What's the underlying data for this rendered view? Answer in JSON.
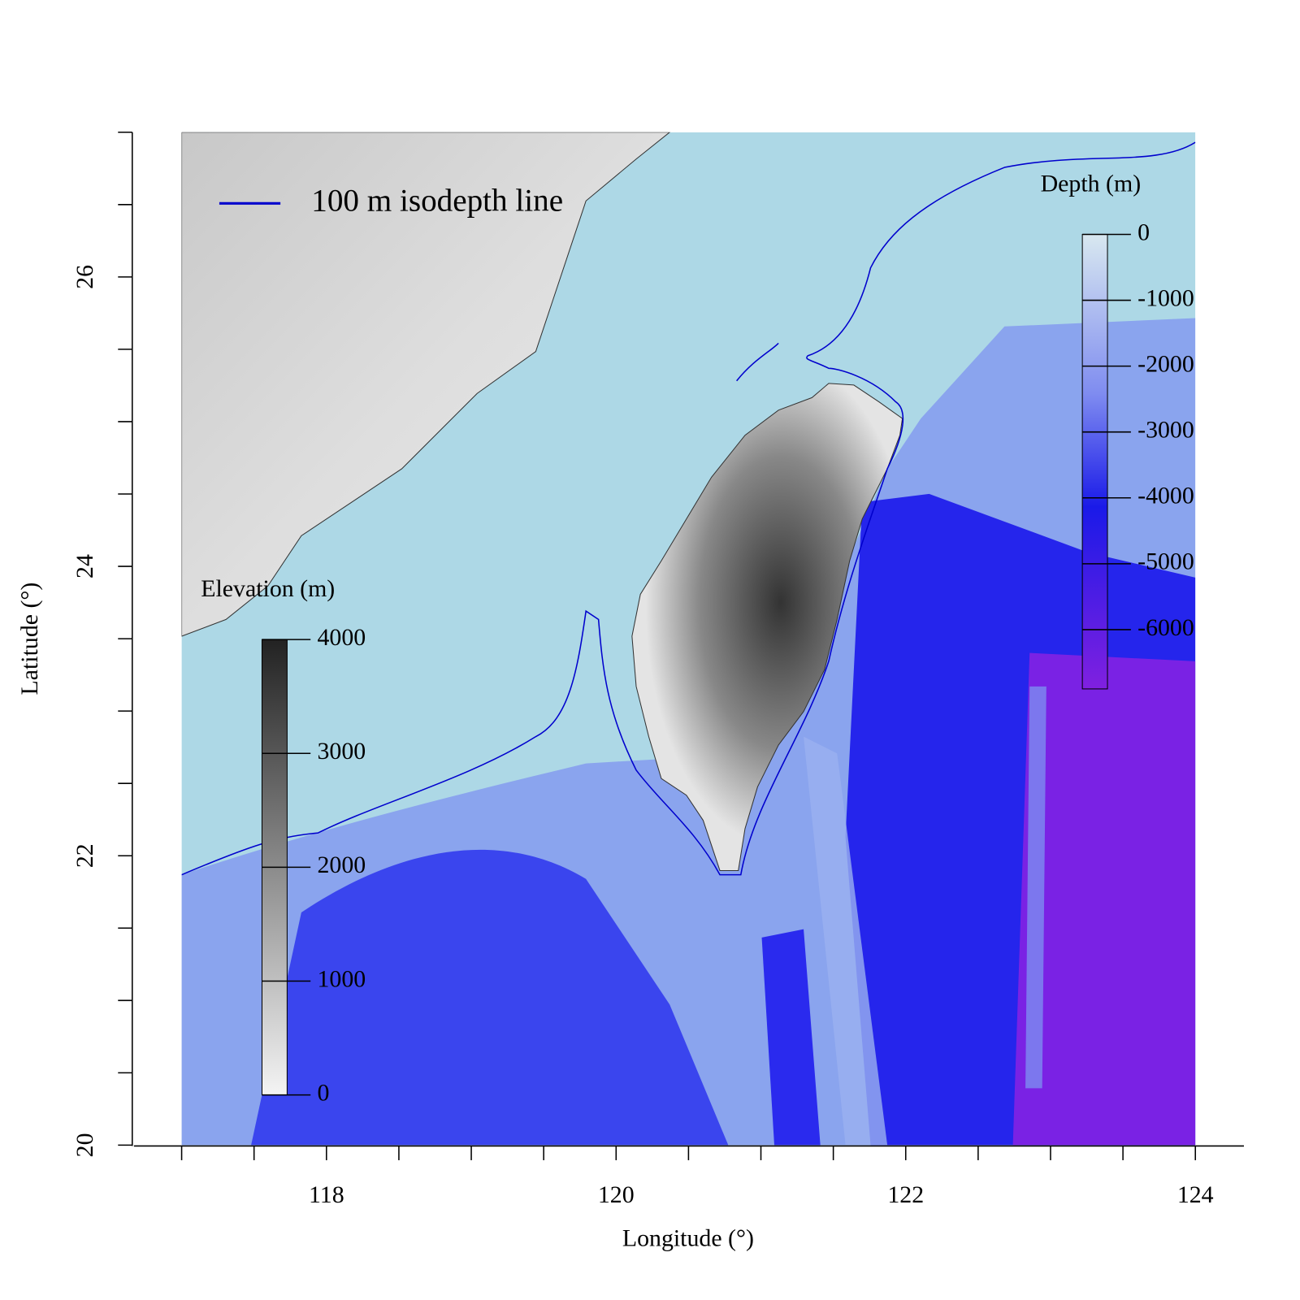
{
  "map": {
    "x_axis": {
      "label": "Longitude (°)",
      "lim": [
        117,
        124
      ],
      "ticks": [
        118,
        120,
        122,
        124
      ],
      "minor_ticks": [
        117,
        117.5,
        118,
        118.5,
        119,
        119.5,
        120,
        120.5,
        121,
        121.5,
        122,
        122.5,
        123,
        123.5,
        124
      ]
    },
    "y_axis": {
      "label": "Latitude (°)",
      "lim": [
        20,
        27
      ],
      "ticks": [
        20,
        22,
        24,
        26
      ],
      "minor_ticks": [
        20,
        20.5,
        21,
        21.5,
        22,
        22.5,
        23,
        23.5,
        24,
        24.5,
        25,
        25.5,
        26,
        26.5,
        27
      ]
    },
    "legend": {
      "label": "100 m isodepth line",
      "color": "#0000cd"
    },
    "elevation_bar": {
      "title": "Elevation (m)",
      "lim": [
        0,
        4000
      ],
      "ticks": [
        0,
        1000,
        2000,
        3000,
        4000
      ]
    },
    "depth_bar": {
      "title": "Depth (m)",
      "lim": [
        0,
        -6900
      ],
      "ticks": [
        0,
        -1000,
        -2000,
        -3000,
        -4000,
        -5000,
        -6000
      ]
    }
  }
}
